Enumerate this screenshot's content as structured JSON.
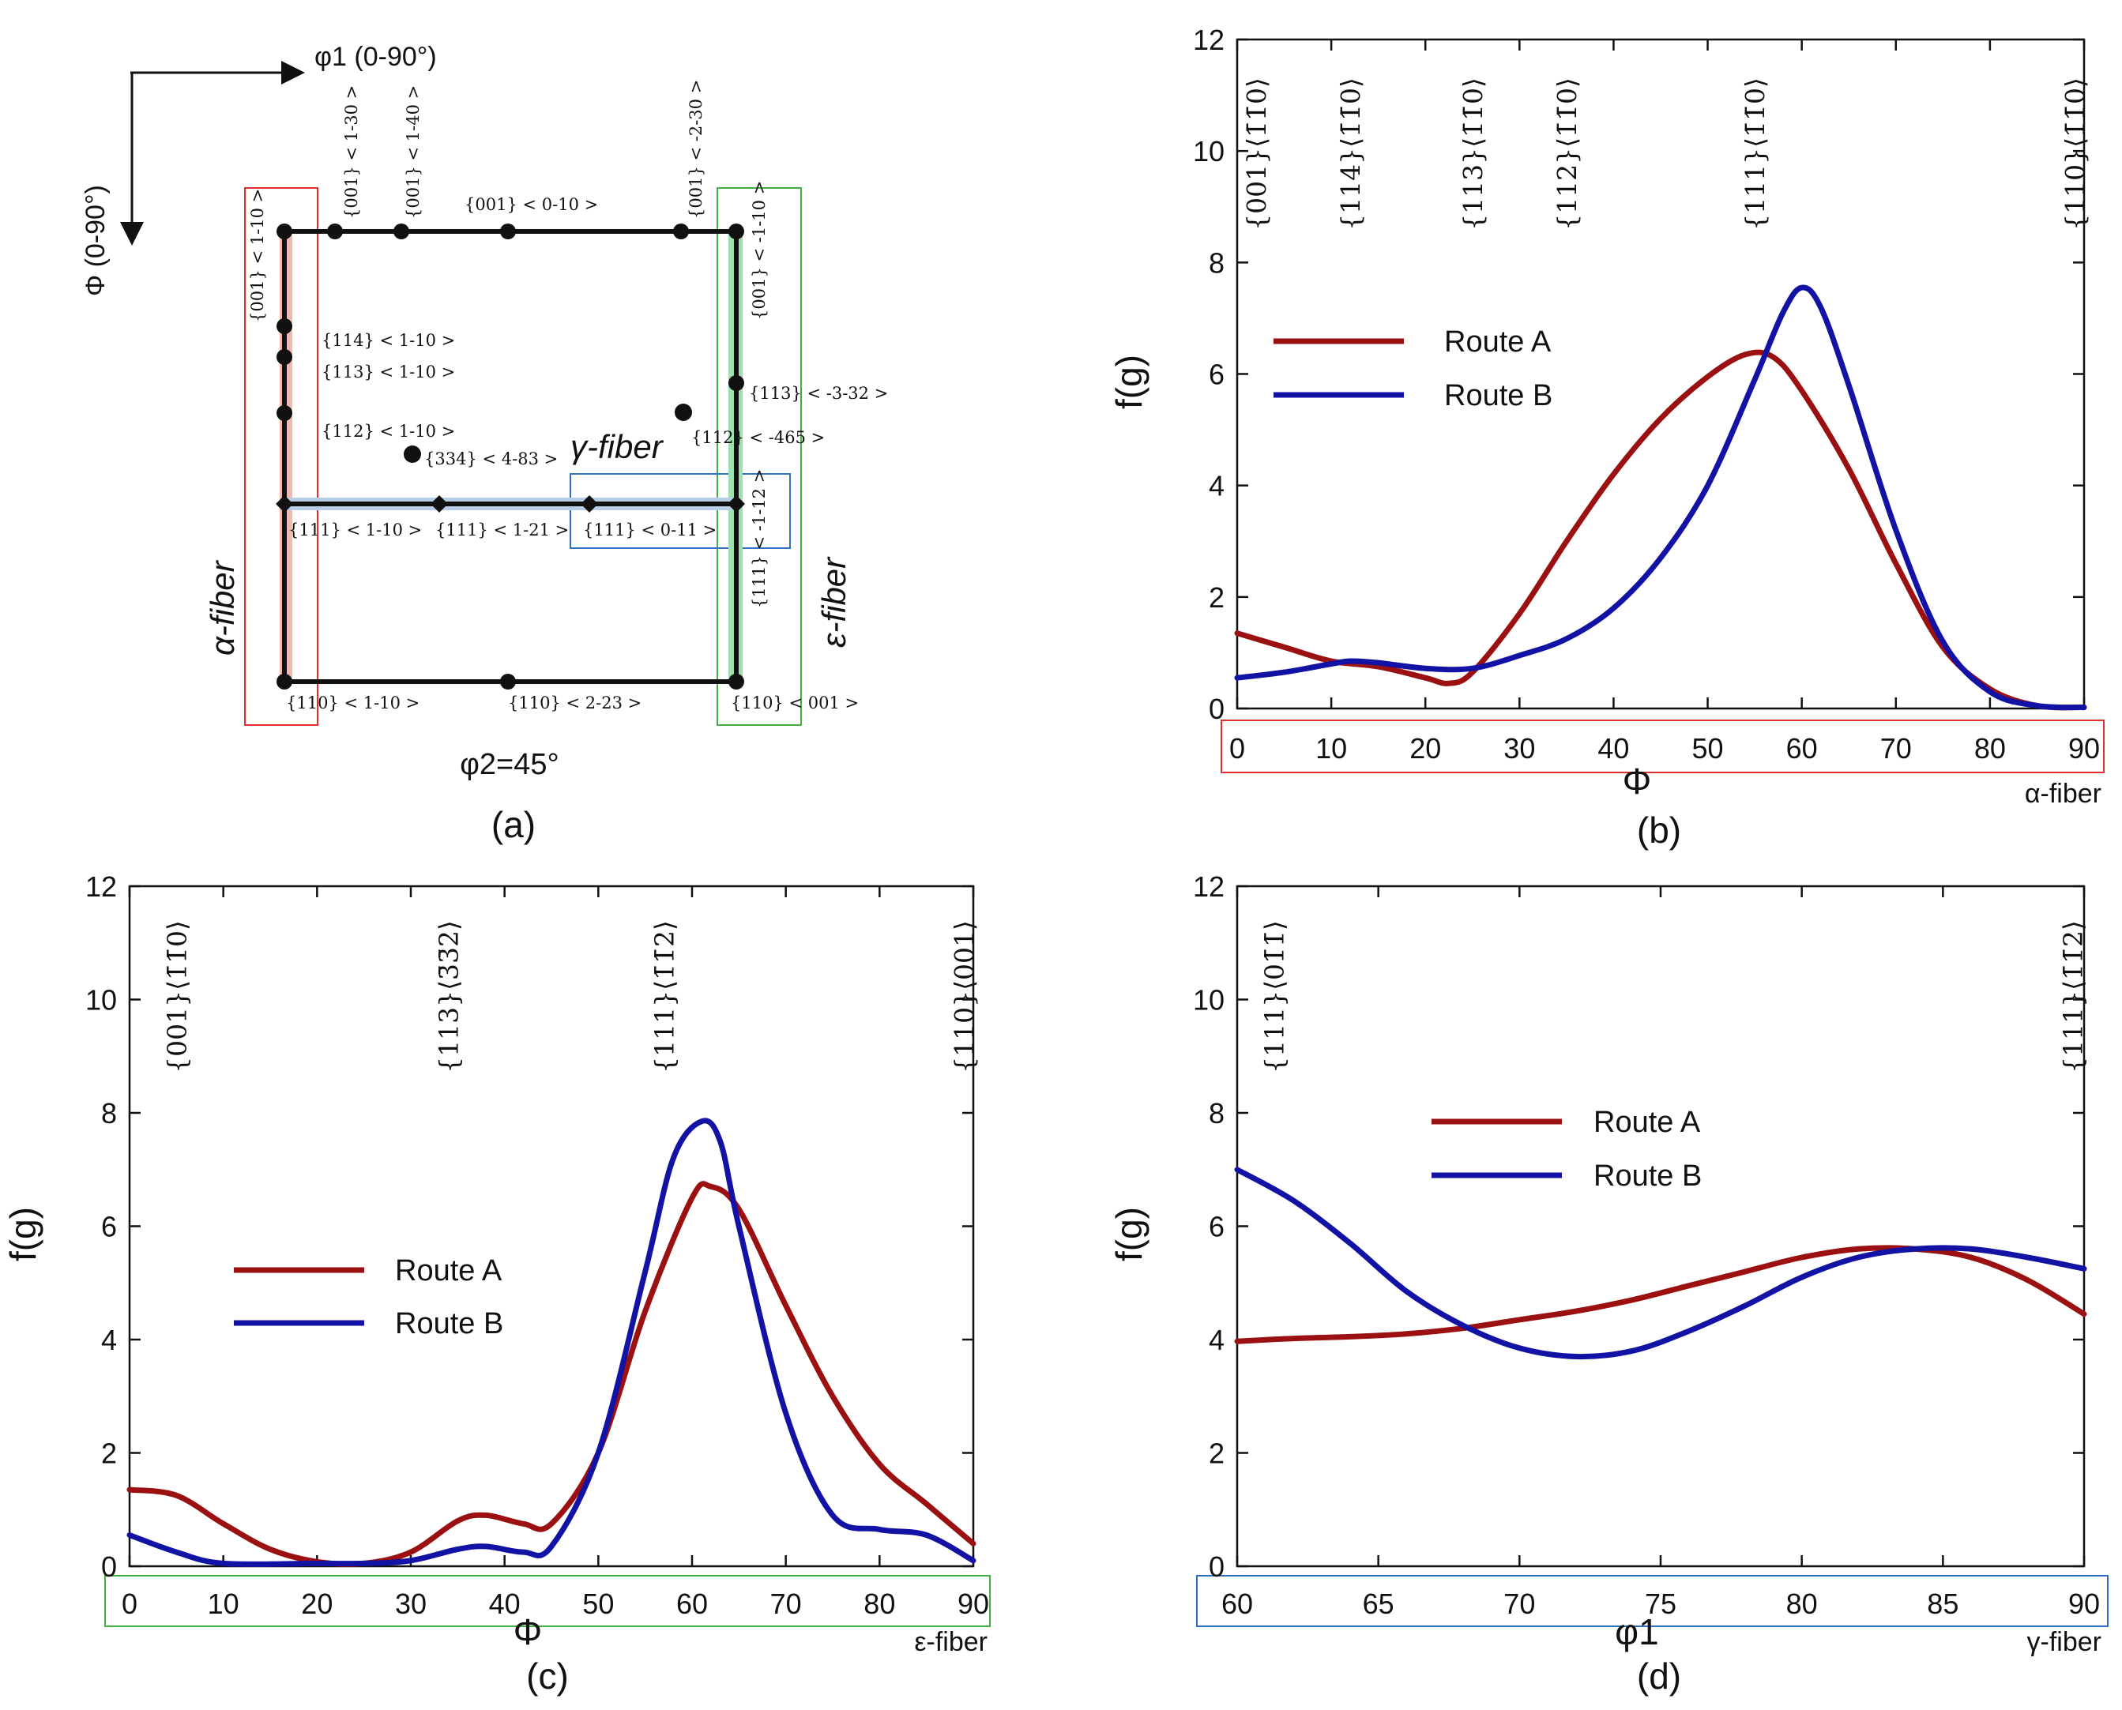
{
  "chart_data": [
    {
      "panel_label": "(a)",
      "type": "diagram",
      "phi1_label": "φ1 (0-90°)",
      "Phi_label": "Φ (0-90°)",
      "section_label": "φ2=45°",
      "gamma_fiber_label": "γ-fiber",
      "alpha_fiber_label": "α-fiber",
      "epsilon_fiber_label": "ε-fiber",
      "nodes": [
        "{001} < 1-10 >",
        "{001} < 1-30 >",
        "{001} < 1-40 >",
        "{001} < 0-10 >",
        "{001} < -2-30 >",
        "{001} < -1-10 >",
        "{114} < 1-10 >",
        "{113} < 1-10 >",
        "{112} < 1-10 >",
        "{334} < 4-83 >",
        "{113} < -3-32 >",
        "{112} < -465 >",
        "{111} < 1-10 >",
        "{111} < 1-21 >",
        "{111} < 0-11 >",
        "{111} < -1-12 >",
        "{110} < 1-10 >",
        "{110} < 2-23 >",
        "{110} < 001 >"
      ]
    },
    {
      "panel_label": "(b)",
      "type": "line",
      "xlabel": "Φ",
      "fiber_label": "α-fiber",
      "ylabel": "f(g)",
      "xlim": [
        0,
        90
      ],
      "ylim": [
        0,
        12
      ],
      "xticks": [
        0,
        10,
        20,
        30,
        40,
        50,
        60,
        70,
        80,
        90
      ],
      "yticks": [
        0,
        2,
        4,
        6,
        8,
        10,
        12
      ],
      "orientation_labels": [
        {
          "x": 2,
          "text": "{001}⟨1̄1̄0⟩"
        },
        {
          "x": 12,
          "text": "{114}⟨1̄1̄0⟩"
        },
        {
          "x": 25,
          "text": "{113}⟨1̄1̄0⟩"
        },
        {
          "x": 35,
          "text": "{112}⟨1̄1̄0⟩"
        },
        {
          "x": 55,
          "text": "{111}⟨1̄1̄0⟩"
        },
        {
          "x": 89,
          "text": "{110}⟨1̄1̄0⟩"
        }
      ],
      "legend": {
        "position": "middle-left"
      },
      "series": [
        {
          "name": "Route A",
          "color": "#9b1010",
          "points": [
            [
              0,
              1.35
            ],
            [
              5,
              1.1
            ],
            [
              10,
              0.85
            ],
            [
              15,
              0.75
            ],
            [
              20,
              0.55
            ],
            [
              22.5,
              0.45
            ],
            [
              25,
              0.65
            ],
            [
              30,
              1.7
            ],
            [
              35,
              3.0
            ],
            [
              40,
              4.2
            ],
            [
              45,
              5.2
            ],
            [
              50,
              5.95
            ],
            [
              54,
              6.35
            ],
            [
              57,
              6.3
            ],
            [
              60,
              5.7
            ],
            [
              65,
              4.3
            ],
            [
              70,
              2.6
            ],
            [
              75,
              1.1
            ],
            [
              80,
              0.35
            ],
            [
              85,
              0.05
            ],
            [
              90,
              0.02
            ]
          ]
        },
        {
          "name": "Route B",
          "color": "#1212a5",
          "points": [
            [
              0,
              0.55
            ],
            [
              5,
              0.65
            ],
            [
              10,
              0.8
            ],
            [
              12,
              0.85
            ],
            [
              15,
              0.82
            ],
            [
              20,
              0.72
            ],
            [
              25,
              0.72
            ],
            [
              30,
              0.95
            ],
            [
              35,
              1.25
            ],
            [
              40,
              1.8
            ],
            [
              45,
              2.7
            ],
            [
              50,
              4.0
            ],
            [
              55,
              5.9
            ],
            [
              58,
              7.1
            ],
            [
              60,
              7.55
            ],
            [
              62,
              7.2
            ],
            [
              65,
              5.8
            ],
            [
              70,
              3.2
            ],
            [
              75,
              1.2
            ],
            [
              80,
              0.3
            ],
            [
              85,
              0.05
            ],
            [
              90,
              0.02
            ]
          ]
        }
      ]
    },
    {
      "panel_label": "(c)",
      "type": "line",
      "xlabel": "Φ",
      "fiber_label": "ε-fiber",
      "ylabel": "f(g)",
      "xlim": [
        0,
        90
      ],
      "ylim": [
        0,
        12
      ],
      "xticks": [
        0,
        10,
        20,
        30,
        40,
        50,
        60,
        70,
        80,
        90
      ],
      "yticks": [
        0,
        2,
        4,
        6,
        8,
        10,
        12
      ],
      "orientation_labels": [
        {
          "x": 5,
          "text": "{001}⟨1̄1̄0⟩"
        },
        {
          "x": 34,
          "text": "{113}⟨3̄3̄2⟩"
        },
        {
          "x": 57,
          "text": "{111}⟨1̄1̄2⟩"
        },
        {
          "x": 89,
          "text": "{110}⟨001⟩"
        }
      ],
      "legend": {
        "position": "middle-left"
      },
      "series": [
        {
          "name": "Route A",
          "color": "#9b1010",
          "points": [
            [
              0,
              1.35
            ],
            [
              5,
              1.25
            ],
            [
              10,
              0.75
            ],
            [
              15,
              0.3
            ],
            [
              20,
              0.08
            ],
            [
              25,
              0.05
            ],
            [
              30,
              0.25
            ],
            [
              35,
              0.8
            ],
            [
              38,
              0.9
            ],
            [
              42,
              0.75
            ],
            [
              45,
              0.75
            ],
            [
              50,
              2.0
            ],
            [
              55,
              4.5
            ],
            [
              60,
              6.5
            ],
            [
              62,
              6.7
            ],
            [
              65,
              6.3
            ],
            [
              70,
              4.6
            ],
            [
              75,
              3.0
            ],
            [
              80,
              1.8
            ],
            [
              85,
              1.1
            ],
            [
              90,
              0.4
            ]
          ]
        },
        {
          "name": "Route B",
          "color": "#1212a5",
          "points": [
            [
              0,
              0.55
            ],
            [
              5,
              0.25
            ],
            [
              10,
              0.05
            ],
            [
              20,
              0.05
            ],
            [
              25,
              0.05
            ],
            [
              30,
              0.1
            ],
            [
              35,
              0.3
            ],
            [
              38,
              0.35
            ],
            [
              42,
              0.25
            ],
            [
              45,
              0.35
            ],
            [
              50,
              2.0
            ],
            [
              55,
              5.2
            ],
            [
              58,
              7.2
            ],
            [
              61,
              7.85
            ],
            [
              63,
              7.5
            ],
            [
              65,
              6.0
            ],
            [
              70,
              2.7
            ],
            [
              75,
              0.9
            ],
            [
              80,
              0.65
            ],
            [
              85,
              0.55
            ],
            [
              90,
              0.1
            ]
          ]
        }
      ]
    },
    {
      "panel_label": "(d)",
      "type": "line",
      "xlabel": "φ1",
      "fiber_label": "γ-fiber",
      "ylabel": "f(g)",
      "xlim": [
        60,
        90
      ],
      "ylim": [
        0,
        12
      ],
      "xticks": [
        60,
        65,
        70,
        75,
        80,
        85,
        90
      ],
      "yticks": [
        0,
        2,
        4,
        6,
        8,
        10,
        12
      ],
      "orientation_labels": [
        {
          "x": 61.3,
          "text": "{111}⟨01̄1̄⟩"
        },
        {
          "x": 89.6,
          "text": "{111}⟨1̄1̄2⟩"
        }
      ],
      "legend": {
        "position": "upper-middle"
      },
      "series": [
        {
          "name": "Route A",
          "color": "#9b1010",
          "points": [
            [
              60,
              3.97
            ],
            [
              62,
              4.02
            ],
            [
              64,
              4.05
            ],
            [
              66,
              4.1
            ],
            [
              68,
              4.2
            ],
            [
              70,
              4.35
            ],
            [
              72,
              4.5
            ],
            [
              74,
              4.7
            ],
            [
              76,
              4.95
            ],
            [
              78,
              5.2
            ],
            [
              80,
              5.45
            ],
            [
              82,
              5.6
            ],
            [
              84,
              5.6
            ],
            [
              86,
              5.45
            ],
            [
              88,
              5.05
            ],
            [
              90,
              4.45
            ]
          ]
        },
        {
          "name": "Route B",
          "color": "#1212a5",
          "points": [
            [
              60,
              7.0
            ],
            [
              62,
              6.45
            ],
            [
              64,
              5.7
            ],
            [
              66,
              4.85
            ],
            [
              68,
              4.25
            ],
            [
              70,
              3.85
            ],
            [
              72,
              3.7
            ],
            [
              74,
              3.8
            ],
            [
              76,
              4.15
            ],
            [
              78,
              4.6
            ],
            [
              80,
              5.1
            ],
            [
              82,
              5.45
            ],
            [
              84,
              5.6
            ],
            [
              86,
              5.6
            ],
            [
              88,
              5.45
            ],
            [
              90,
              5.25
            ]
          ]
        }
      ]
    }
  ]
}
